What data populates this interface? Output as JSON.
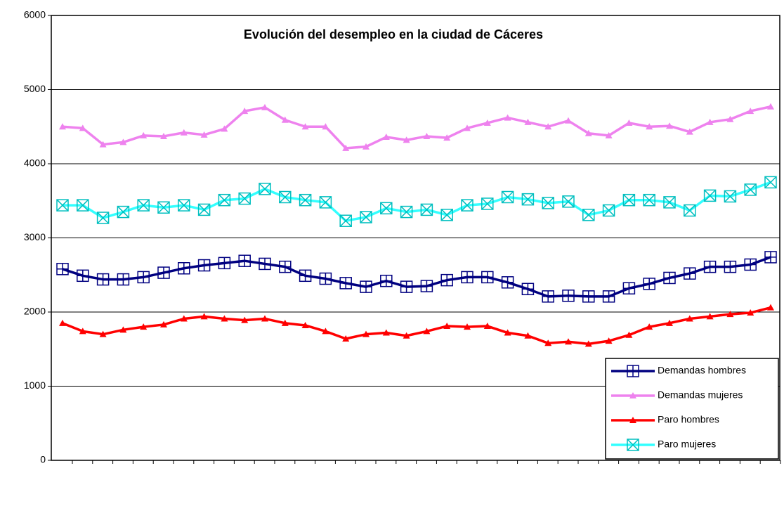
{
  "chart_data": {
    "type": "line",
    "title": "Evolución del desempleo en la ciudad de Cáceres",
    "categories": [
      null,
      null,
      null,
      null,
      null,
      null,
      null,
      null,
      null,
      null,
      null,
      null,
      null,
      null,
      null,
      null,
      null,
      null,
      null,
      null,
      null,
      null,
      null,
      null,
      null,
      null,
      null,
      null,
      null,
      null,
      null,
      null,
      null,
      null,
      null,
      null
    ],
    "series": [
      {
        "name": "Demandas hombres",
        "color": "#000080",
        "marker": "square-plus",
        "values": [
          2580,
          2490,
          2440,
          2440,
          2470,
          2530,
          2590,
          2630,
          2660,
          2690,
          2650,
          2610,
          2490,
          2450,
          2390,
          2340,
          2420,
          2340,
          2350,
          2430,
          2470,
          2470,
          2400,
          2310,
          2210,
          2220,
          2210,
          2210,
          2320,
          2380,
          2460,
          2520,
          2610,
          2610,
          2640,
          2740
        ]
      },
      {
        "name": "Demandas mujeres",
        "color": "#ee82ee",
        "marker": "triangle",
        "values": [
          4500,
          4480,
          4260,
          4290,
          4380,
          4370,
          4420,
          4390,
          4470,
          4710,
          4760,
          4590,
          4500,
          4500,
          4210,
          4230,
          4360,
          4320,
          4370,
          4350,
          4480,
          4550,
          4620,
          4560,
          4500,
          4580,
          4410,
          4380,
          4550,
          4500,
          4510,
          4430,
          4560,
          4600,
          4710,
          4770
        ]
      },
      {
        "name": "Paro hombres",
        "color": "#ff0000",
        "marker": "triangle",
        "values": [
          1850,
          1740,
          1700,
          1760,
          1800,
          1830,
          1910,
          1940,
          1910,
          1890,
          1910,
          1850,
          1820,
          1740,
          1640,
          1700,
          1720,
          1680,
          1740,
          1810,
          1800,
          1810,
          1720,
          1680,
          1580,
          1600,
          1570,
          1610,
          1690,
          1800,
          1850,
          1910,
          1940,
          1970,
          1990,
          2060
        ]
      },
      {
        "name": "Paro mujeres",
        "color": "#33ffff",
        "marker": "square-x",
        "values": [
          3440,
          3440,
          3270,
          3350,
          3440,
          3410,
          3440,
          3380,
          3510,
          3530,
          3660,
          3550,
          3510,
          3480,
          3230,
          3280,
          3400,
          3350,
          3380,
          3310,
          3440,
          3460,
          3550,
          3520,
          3470,
          3490,
          3310,
          3370,
          3510,
          3510,
          3480,
          3370,
          3570,
          3560,
          3650,
          3750
        ]
      }
    ],
    "ylim": [
      0,
      6000
    ],
    "yticks": [
      0,
      1000,
      2000,
      3000,
      4000,
      5000,
      6000
    ],
    "grid": true,
    "legend": "bottom-right"
  }
}
